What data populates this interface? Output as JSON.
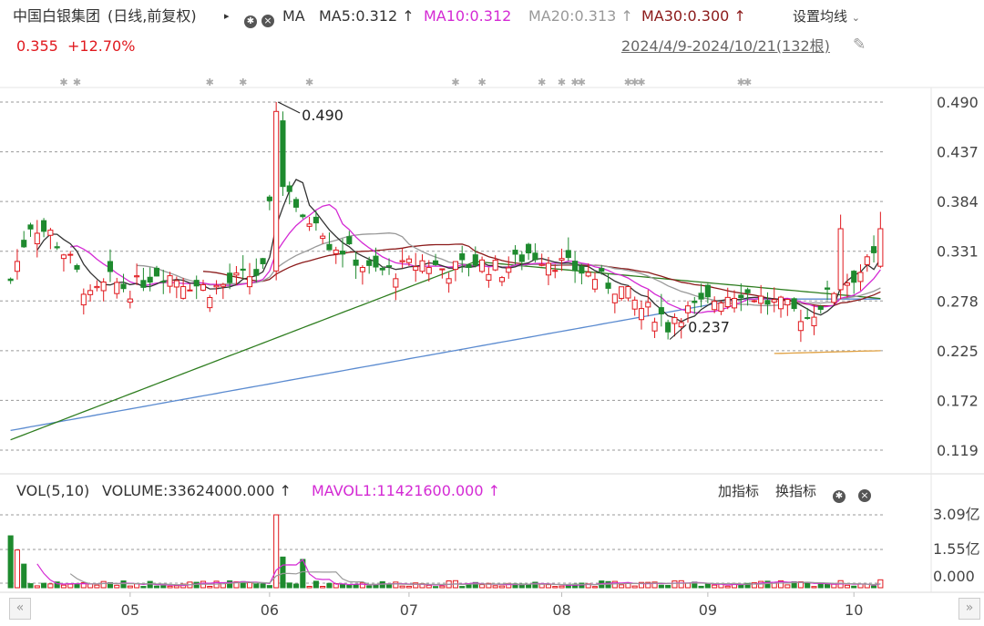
{
  "header": {
    "stock_name": "中国白银集团",
    "mode": "(日线,前复权)",
    "indicator": "MA",
    "ma5": "MA5:0.312",
    "ma10": "MA10:0.312",
    "ma20": "MA20:0.313",
    "ma30": "MA30:0.300",
    "settings_label": "设置均线",
    "last_price": "0.355",
    "change_pct": "+12.70%",
    "date_range": "2024/4/9-2024/10/21(132根)"
  },
  "volume_header": {
    "vol_label": "VOL(5,10)",
    "volume": "VOLUME:33624000.000",
    "mavol1": "MAVOL1:11421600.000",
    "add_indicator": "加指标",
    "switch_indicator": "换指标"
  },
  "colors": {
    "up": "#e0191e",
    "down": "#1e8a2e",
    "ma5": "#333333",
    "ma10": "#d42ad4",
    "ma20": "#999999",
    "ma30": "#8b1a1a",
    "ma60": "#2e7d1f",
    "ma120": "#5b8bd0",
    "other": "#e0a040"
  },
  "chart_data": {
    "type": "candlestick",
    "x_axis_labels": [
      "05",
      "06",
      "07",
      "08",
      "09",
      "10"
    ],
    "price_axis_ticks": [
      "0.490",
      "0.437",
      "0.384",
      "0.331",
      "0.278",
      "0.225",
      "0.172",
      "0.119"
    ],
    "price_axis_values": [
      0.49,
      0.437,
      0.384,
      0.331,
      0.278,
      0.225,
      0.172,
      0.119
    ],
    "volume_axis_ticks": [
      "3.09亿",
      "1.55亿",
      "0.000"
    ],
    "annotations": [
      {
        "text": "0.490",
        "price": 0.49,
        "bar": 40
      },
      {
        "text": "0.237",
        "price": 0.237,
        "bar": 99
      }
    ],
    "bar_count": 132,
    "price_range": [
      0.1,
      0.5
    ],
    "volume_range": [
      0,
      309000000
    ]
  },
  "icons": {
    "play": "play-triangle-icon",
    "gear": "gear-icon",
    "close": "close-icon",
    "pin": "pin-icon",
    "dropdown": "chevron-down-icon"
  }
}
